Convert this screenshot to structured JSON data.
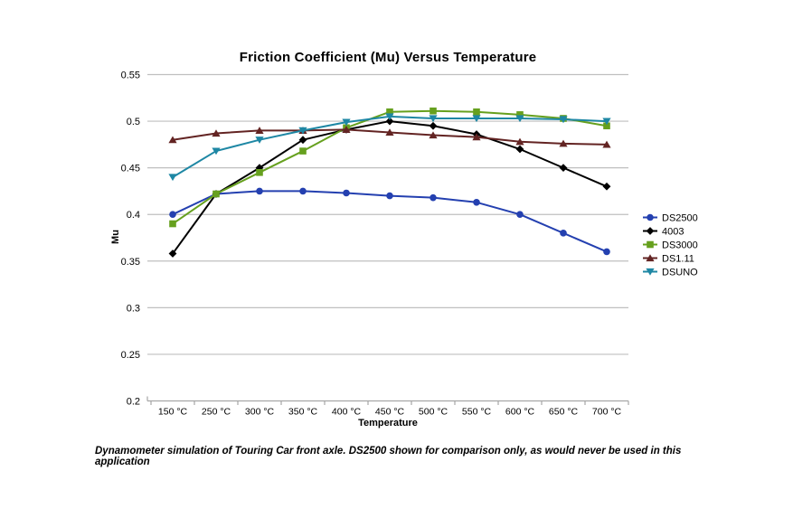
{
  "chart_data": {
    "type": "line",
    "title": "Friction Coefficient (Mu) Versus Temperature",
    "xlabel": "Temperature",
    "ylabel": "Mu",
    "categories": [
      "150 °C",
      "250 °C",
      "300 °C",
      "350 °C",
      "400 °C",
      "450 °C",
      "500 °C",
      "550 °C",
      "600 °C",
      "650 °C",
      "700 °C"
    ],
    "y_ticks": [
      0.55,
      0.5,
      0.45,
      0.4,
      0.35,
      0.3,
      0.25,
      0.2
    ],
    "ylim": [
      0.2,
      0.55
    ],
    "grid": true,
    "legend_position": "right",
    "series": [
      {
        "name": "DS2500",
        "color": "#2440B0",
        "marker": "circle",
        "values": [
          0.4,
          0.422,
          0.425,
          0.425,
          0.423,
          0.42,
          0.418,
          0.413,
          0.4,
          0.38,
          0.36
        ]
      },
      {
        "name": "4003",
        "color": "#000000",
        "marker": "diamond",
        "values": [
          0.358,
          0.422,
          0.45,
          0.48,
          0.491,
          0.5,
          0.495,
          0.486,
          0.47,
          0.45,
          0.43
        ]
      },
      {
        "name": "DS3000",
        "color": "#66A01E",
        "marker": "square",
        "values": [
          0.39,
          0.422,
          0.445,
          0.468,
          0.493,
          0.51,
          0.511,
          0.51,
          0.507,
          0.503,
          0.495
        ]
      },
      {
        "name": "DS1.11",
        "color": "#632423",
        "marker": "triangle-up",
        "values": [
          0.48,
          0.487,
          0.49,
          0.49,
          0.491,
          0.488,
          0.485,
          0.483,
          0.478,
          0.476,
          0.475
        ]
      },
      {
        "name": "DSUNO",
        "color": "#1E87A4",
        "marker": "triangle-down",
        "values": [
          0.44,
          0.468,
          0.48,
          0.49,
          0.499,
          0.505,
          0.503,
          0.503,
          0.503,
          0.502,
          0.5
        ]
      }
    ]
  },
  "footnote": "Dynamometer simulation of Touring Car front axle. DS2500 shown for comparison only, as would never be used in this application",
  "colors": {
    "gridline": "#BFBFBF",
    "axis": "#A6A6A6",
    "text": "#000000",
    "background": "#FFFFFF"
  }
}
